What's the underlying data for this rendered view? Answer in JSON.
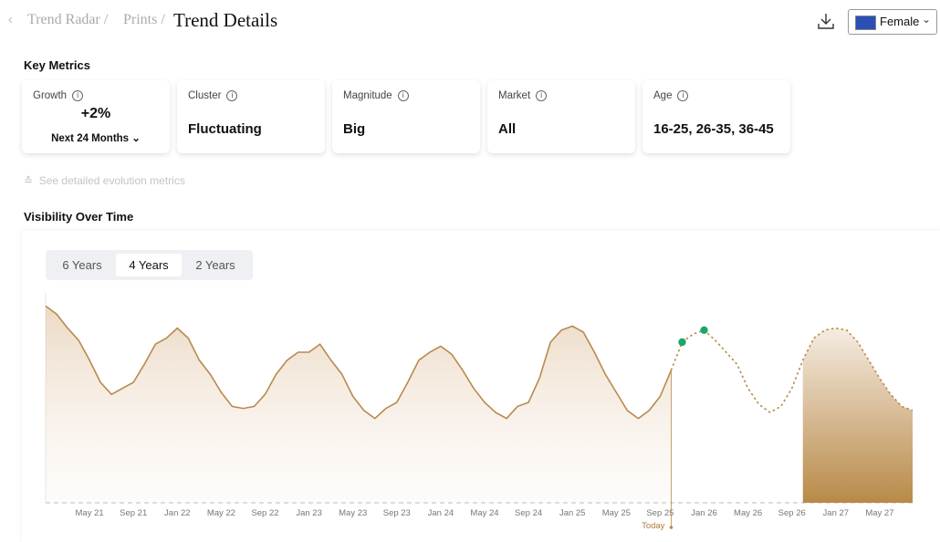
{
  "breadcrumb": [
    "Trend Radar /",
    "Prints /"
  ],
  "title": "Trend Details",
  "gender_select": "Female",
  "key_metrics": {
    "heading": "Key Metrics",
    "cards": [
      {
        "label": "Growth",
        "value": "+2%",
        "period": "Next 24 Months"
      },
      {
        "label": "Cluster",
        "value": "Fluctuating"
      },
      {
        "label": "Magnitude",
        "value": "Big"
      },
      {
        "label": "Market",
        "value": "All"
      },
      {
        "label": "Age",
        "value": "16-25, 26-35, 36-45"
      }
    ]
  },
  "see_more": "See detailed evolution metrics",
  "visibility": {
    "heading": "Visibility Over Time",
    "ranges": [
      "6 Years",
      "4 Years",
      "2 Years"
    ]
  },
  "chart_data": {
    "type": "line",
    "today_label": "Today",
    "categories": [
      null,
      null,
      null,
      null,
      "May 21",
      null,
      null,
      null,
      "Sep 21",
      null,
      null,
      null,
      "Jan 22",
      null,
      null,
      null,
      "May 22",
      null,
      null,
      null,
      "Sep 22",
      null,
      null,
      null,
      "Jan 23",
      null,
      null,
      null,
      "May 23",
      null,
      null,
      null,
      "Sep 23",
      null,
      null,
      null,
      "Jan 24",
      null,
      null,
      null,
      "May 24",
      null,
      null,
      null,
      "Sep 24",
      null,
      null,
      null,
      "Jan 25",
      null,
      null,
      null,
      "May 25",
      null,
      null,
      null,
      "Sep 25",
      null,
      null,
      null,
      "Jan 26",
      null,
      null,
      null,
      "May 26",
      null,
      null,
      null,
      "Sep 26",
      null,
      null,
      null,
      "Jan 27",
      null,
      null,
      null,
      "May 27",
      null,
      null,
      null
    ],
    "history": [
      98,
      94,
      87,
      81,
      71,
      60,
      54,
      57,
      60,
      69,
      79,
      82,
      87,
      82,
      71,
      64,
      55,
      48,
      47,
      48,
      54,
      64,
      71,
      75,
      75,
      79,
      71,
      64,
      53,
      46,
      42,
      47,
      50,
      60,
      71,
      75,
      78,
      74,
      66,
      57,
      50,
      45,
      42,
      48,
      50,
      62,
      80,
      86,
      88,
      85,
      75,
      64,
      55,
      46,
      42,
      46,
      53,
      66,
      null,
      null,
      null,
      null,
      null,
      null,
      null,
      null,
      null,
      null,
      null,
      null,
      null,
      null,
      null,
      null,
      null,
      null,
      null,
      null,
      null,
      null
    ],
    "forecast": [
      null,
      null,
      null,
      null,
      null,
      null,
      null,
      null,
      null,
      null,
      null,
      null,
      null,
      null,
      null,
      null,
      null,
      null,
      null,
      null,
      null,
      null,
      null,
      null,
      null,
      null,
      null,
      null,
      null,
      null,
      null,
      null,
      null,
      null,
      null,
      null,
      null,
      null,
      null,
      null,
      null,
      null,
      null,
      null,
      null,
      null,
      null,
      null,
      null,
      null,
      null,
      null,
      null,
      null,
      null,
      null,
      null,
      66,
      80,
      84,
      86,
      81,
      75,
      69,
      57,
      49,
      45,
      48,
      57,
      71,
      82,
      86,
      87,
      86,
      80,
      71,
      62,
      54,
      48,
      46
    ],
    "markers": [
      null,
      null,
      null,
      null,
      null,
      null,
      null,
      null,
      null,
      null,
      null,
      null,
      null,
      null,
      null,
      null,
      null,
      null,
      null,
      null,
      null,
      null,
      null,
      null,
      null,
      null,
      null,
      null,
      null,
      null,
      null,
      null,
      null,
      null,
      null,
      null,
      null,
      null,
      null,
      null,
      null,
      null,
      null,
      null,
      null,
      null,
      null,
      null,
      null,
      null,
      null,
      null,
      null,
      null,
      null,
      null,
      null,
      null,
      80,
      null,
      86,
      null,
      null,
      null,
      null,
      null,
      null,
      null,
      null,
      null,
      null,
      null,
      null,
      null,
      null,
      null,
      null,
      null,
      null,
      null
    ],
    "ylim": [
      0,
      100
    ],
    "line_color": "#b98a4e",
    "marker_color": "#18a86b"
  }
}
